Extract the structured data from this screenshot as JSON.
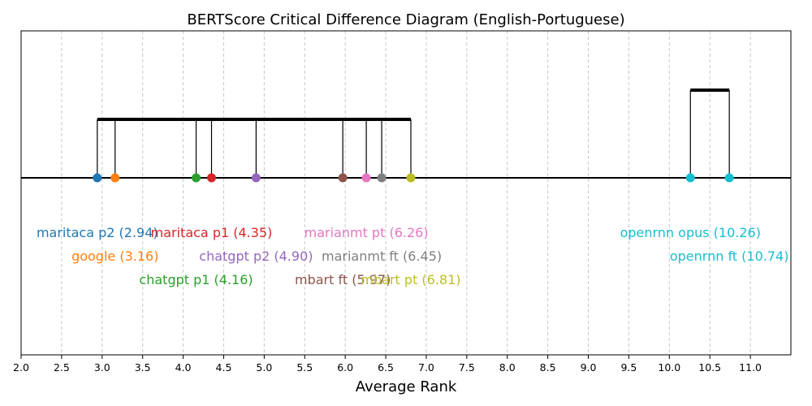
{
  "chart_data": {
    "type": "scatter",
    "title": "BERTScore Critical Difference Diagram (English-Portuguese)",
    "xlabel": "Average Rank",
    "xlim": [
      2.0,
      11.5
    ],
    "xticks": [
      "2.0",
      "2.5",
      "3.0",
      "3.5",
      "4.0",
      "4.5",
      "5.0",
      "5.5",
      "6.0",
      "6.5",
      "7.0",
      "7.5",
      "8.0",
      "8.5",
      "9.0",
      "9.5",
      "10.0",
      "10.5",
      "11.0"
    ],
    "grid": "vertical dashed",
    "models": [
      {
        "label": "maritaca p2 (2.94)",
        "rank": 2.94,
        "color": "#1f77b4",
        "row": 0
      },
      {
        "label": "google (3.16)",
        "rank": 3.16,
        "color": "#ff7f0e",
        "row": 1
      },
      {
        "label": "chatgpt p1 (4.16)",
        "rank": 4.16,
        "color": "#2ca02c",
        "row": 2
      },
      {
        "label": "maritaca p1 (4.35)",
        "rank": 4.35,
        "color": "#d62728",
        "row": 0
      },
      {
        "label": "chatgpt p2 (4.90)",
        "rank": 4.9,
        "color": "#9467bd",
        "row": 1
      },
      {
        "label": "mbart ft (5.97)",
        "rank": 5.97,
        "color": "#8c564b",
        "row": 2
      },
      {
        "label": "marianmt pt (6.26)",
        "rank": 6.26,
        "color": "#e377c2",
        "row": 0
      },
      {
        "label": "marianmt ft (6.45)",
        "rank": 6.45,
        "color": "#7f7f7f",
        "row": 1
      },
      {
        "label": "mbart pt (6.81)",
        "rank": 6.81,
        "color": "#bcbd22",
        "row": 2
      },
      {
        "label": "openrnn opus (10.26)",
        "rank": 10.26,
        "color": "#17becf",
        "row": 0
      },
      {
        "label": "openrnn ft (10.74)",
        "rank": 10.74,
        "color": "#17becf",
        "row": 1
      }
    ],
    "cliques": [
      {
        "start": 2.94,
        "end": 6.81,
        "level": 0
      },
      {
        "start": 10.26,
        "end": 10.74,
        "level": 1
      }
    ]
  }
}
